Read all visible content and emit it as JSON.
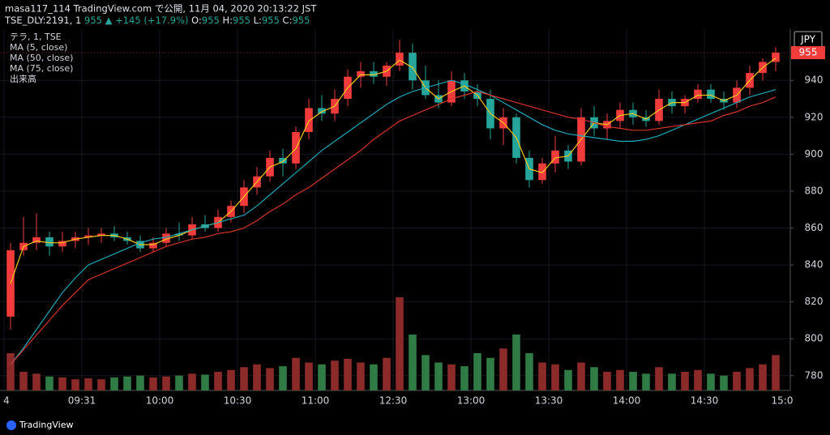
{
  "header": {
    "publisher": "masa117_114 TradingView.com で公開, 11月 04, 2020 20:13:22 JST",
    "symbol": "TSE_DLY:2191, 1",
    "price": "955",
    "change": "▲ +145 (+17.9%)",
    "ohlc": [
      {
        "label": "O:",
        "value": "955"
      },
      {
        "label": "H:",
        "value": "955"
      },
      {
        "label": "L:",
        "value": "955"
      },
      {
        "label": "C:",
        "value": "955"
      }
    ]
  },
  "footer": {
    "brand": "TradingView"
  },
  "chart_data": {
    "type": "candlestick",
    "series_label": "テラ, 1, TSE",
    "volume_name": "出来高",
    "currency": "JPY",
    "last_price": 955,
    "up_color": "#f23b3b",
    "down_color": "#26a69a",
    "grid": true,
    "ylim": [
      772,
      966
    ],
    "yticks": [
      780,
      800,
      820,
      840,
      860,
      880,
      900,
      920,
      940
    ],
    "categories": [
      "4",
      null,
      null,
      null,
      null,
      null,
      "09:31",
      null,
      null,
      null,
      null,
      null,
      "10:00",
      null,
      null,
      null,
      null,
      null,
      "10:30",
      null,
      null,
      null,
      null,
      null,
      "11:00",
      null,
      null,
      null,
      null,
      null,
      "12:30",
      null,
      null,
      null,
      null,
      null,
      "13:00",
      null,
      null,
      null,
      null,
      null,
      "13:30",
      null,
      null,
      null,
      null,
      null,
      "14:00",
      null,
      null,
      null,
      null,
      null,
      "14:30",
      null,
      null,
      null,
      null,
      null
    ],
    "x_end_label": "15:0",
    "open": [
      812,
      848,
      852,
      855,
      850,
      853,
      855,
      856,
      857,
      855,
      853,
      849,
      852,
      857,
      856,
      862,
      860,
      866,
      872,
      882,
      888,
      898,
      895,
      912,
      925,
      922,
      930,
      942,
      945,
      942,
      948,
      955,
      940,
      932,
      928,
      940,
      934,
      930,
      914,
      920,
      898,
      886,
      895,
      902,
      896,
      920,
      914,
      918,
      924,
      920,
      918,
      930,
      926,
      930,
      935,
      930,
      928,
      936,
      944,
      950
    ],
    "high": [
      852,
      866,
      868,
      858,
      858,
      858,
      860,
      860,
      861,
      858,
      856,
      855,
      860,
      863,
      866,
      867,
      870,
      875,
      886,
      893,
      902,
      903,
      915,
      930,
      932,
      935,
      946,
      950,
      950,
      950,
      962,
      960,
      948,
      940,
      945,
      944,
      938,
      935,
      925,
      922,
      902,
      898,
      910,
      905,
      925,
      926,
      922,
      928,
      928,
      924,
      935,
      934,
      932,
      938,
      938,
      934,
      940,
      948,
      952,
      958
    ],
    "low": [
      805,
      845,
      848,
      845,
      847,
      849,
      851,
      852,
      853,
      851,
      847,
      847,
      850,
      853,
      854,
      858,
      858,
      863,
      868,
      878,
      885,
      888,
      892,
      908,
      918,
      918,
      926,
      936,
      938,
      937,
      945,
      935,
      930,
      925,
      926,
      930,
      926,
      908,
      905,
      895,
      882,
      884,
      890,
      892,
      894,
      910,
      908,
      914,
      916,
      915,
      916,
      922,
      922,
      928,
      928,
      924,
      925,
      932,
      940,
      945
    ],
    "close": [
      848,
      852,
      855,
      850,
      853,
      855,
      856,
      857,
      855,
      853,
      849,
      852,
      857,
      856,
      862,
      860,
      866,
      872,
      882,
      888,
      898,
      895,
      912,
      925,
      922,
      930,
      942,
      945,
      942,
      948,
      955,
      940,
      932,
      928,
      940,
      934,
      930,
      914,
      920,
      898,
      886,
      895,
      902,
      896,
      920,
      914,
      918,
      924,
      920,
      918,
      930,
      926,
      930,
      935,
      930,
      928,
      936,
      944,
      950,
      955
    ],
    "volume": [
      40,
      20,
      18,
      15,
      14,
      12,
      13,
      12,
      14,
      15,
      16,
      14,
      15,
      16,
      18,
      17,
      20,
      22,
      25,
      28,
      24,
      26,
      35,
      30,
      28,
      32,
      34,
      30,
      28,
      35,
      100,
      60,
      38,
      30,
      28,
      26,
      40,
      35,
      45,
      60,
      40,
      30,
      28,
      22,
      30,
      25,
      20,
      22,
      20,
      18,
      25,
      18,
      20,
      22,
      18,
      16,
      20,
      24,
      28,
      38
    ],
    "ma": [
      {
        "name": "MA (5, close)",
        "color": "#f5c518",
        "values": [
          830,
          850,
          853,
          852,
          852,
          854,
          855,
          856,
          856,
          854,
          851,
          851,
          854,
          856,
          859,
          861,
          863,
          869,
          877,
          885,
          893,
          896,
          903,
          918,
          923,
          926,
          936,
          943,
          943,
          945,
          951,
          947,
          936,
          930,
          934,
          937,
          932,
          922,
          917,
          909,
          892,
          890,
          898,
          899,
          908,
          917,
          916,
          921,
          922,
          919,
          924,
          928,
          928,
          932,
          932,
          929,
          932,
          940,
          947,
          952
        ]
      },
      {
        "name": "MA (50, close)",
        "color": "#1fa7b8",
        "values": [
          786,
          795,
          805,
          815,
          825,
          833,
          840,
          843,
          846,
          849,
          852,
          854,
          855,
          857,
          859,
          861,
          863,
          865,
          867,
          872,
          878,
          884,
          890,
          896,
          902,
          907,
          912,
          917,
          922,
          927,
          931,
          934,
          936,
          938,
          940,
          938,
          935,
          932,
          928,
          924,
          920,
          916,
          913,
          911,
          910,
          909,
          908,
          907,
          907,
          908,
          910,
          913,
          916,
          919,
          922,
          925,
          928,
          931,
          933,
          935
        ]
      },
      {
        "name": "MA (75, close)",
        "color": "#d6332a",
        "values": [
          786,
          794,
          802,
          810,
          818,
          825,
          832,
          835,
          838,
          841,
          844,
          847,
          850,
          852,
          854,
          855,
          857,
          858,
          860,
          864,
          869,
          873,
          878,
          882,
          887,
          892,
          897,
          902,
          908,
          913,
          918,
          921,
          924,
          927,
          930,
          932,
          934,
          932,
          930,
          928,
          926,
          924,
          922,
          920,
          919,
          917,
          915,
          914,
          913,
          913,
          914,
          915,
          916,
          917,
          918,
          921,
          923,
          926,
          928,
          931
        ]
      }
    ]
  }
}
